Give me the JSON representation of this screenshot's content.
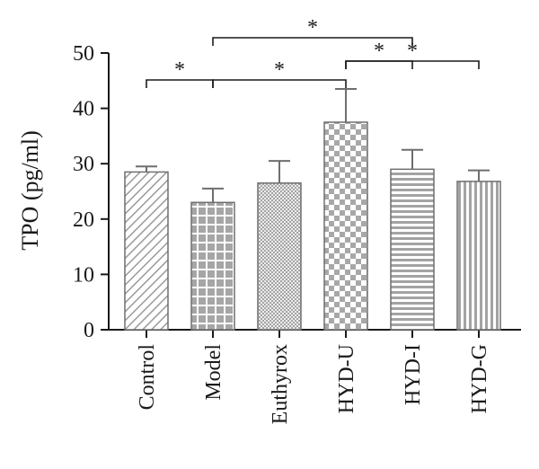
{
  "chart_data": {
    "type": "bar",
    "ylabel": "TPO (pg/ml)",
    "xlabel": "",
    "ylim": [
      0,
      50
    ],
    "yticks": [
      0,
      10,
      20,
      30,
      40,
      50
    ],
    "categories": [
      "Control",
      "Model",
      "Euthyrox",
      "HYD-U",
      "HYD-I",
      "HYD-G"
    ],
    "values": [
      28.5,
      23.0,
      26.5,
      37.5,
      29.0,
      26.8
    ],
    "errors": [
      1.0,
      2.5,
      4.0,
      6.0,
      3.5,
      2.0
    ],
    "bar_fill_patterns": [
      "diagonal-hatch",
      "grid-squares",
      "fine-dots",
      "checkerboard",
      "horizontal-lines",
      "vertical-lines"
    ],
    "significance": [
      {
        "from": 1,
        "to": 4,
        "label": "*"
      },
      {
        "from": 0,
        "to": 1,
        "label": "*"
      },
      {
        "from": 1,
        "to": 3,
        "label": "*"
      },
      {
        "from": 3,
        "to": 4,
        "label": "*"
      },
      {
        "from": 3,
        "to": 5,
        "label": "*"
      }
    ],
    "colors": {
      "bar_stroke": "#6e6e6e",
      "pattern_ink": "#9a9a9a",
      "axis": "#1a1a1a"
    }
  }
}
